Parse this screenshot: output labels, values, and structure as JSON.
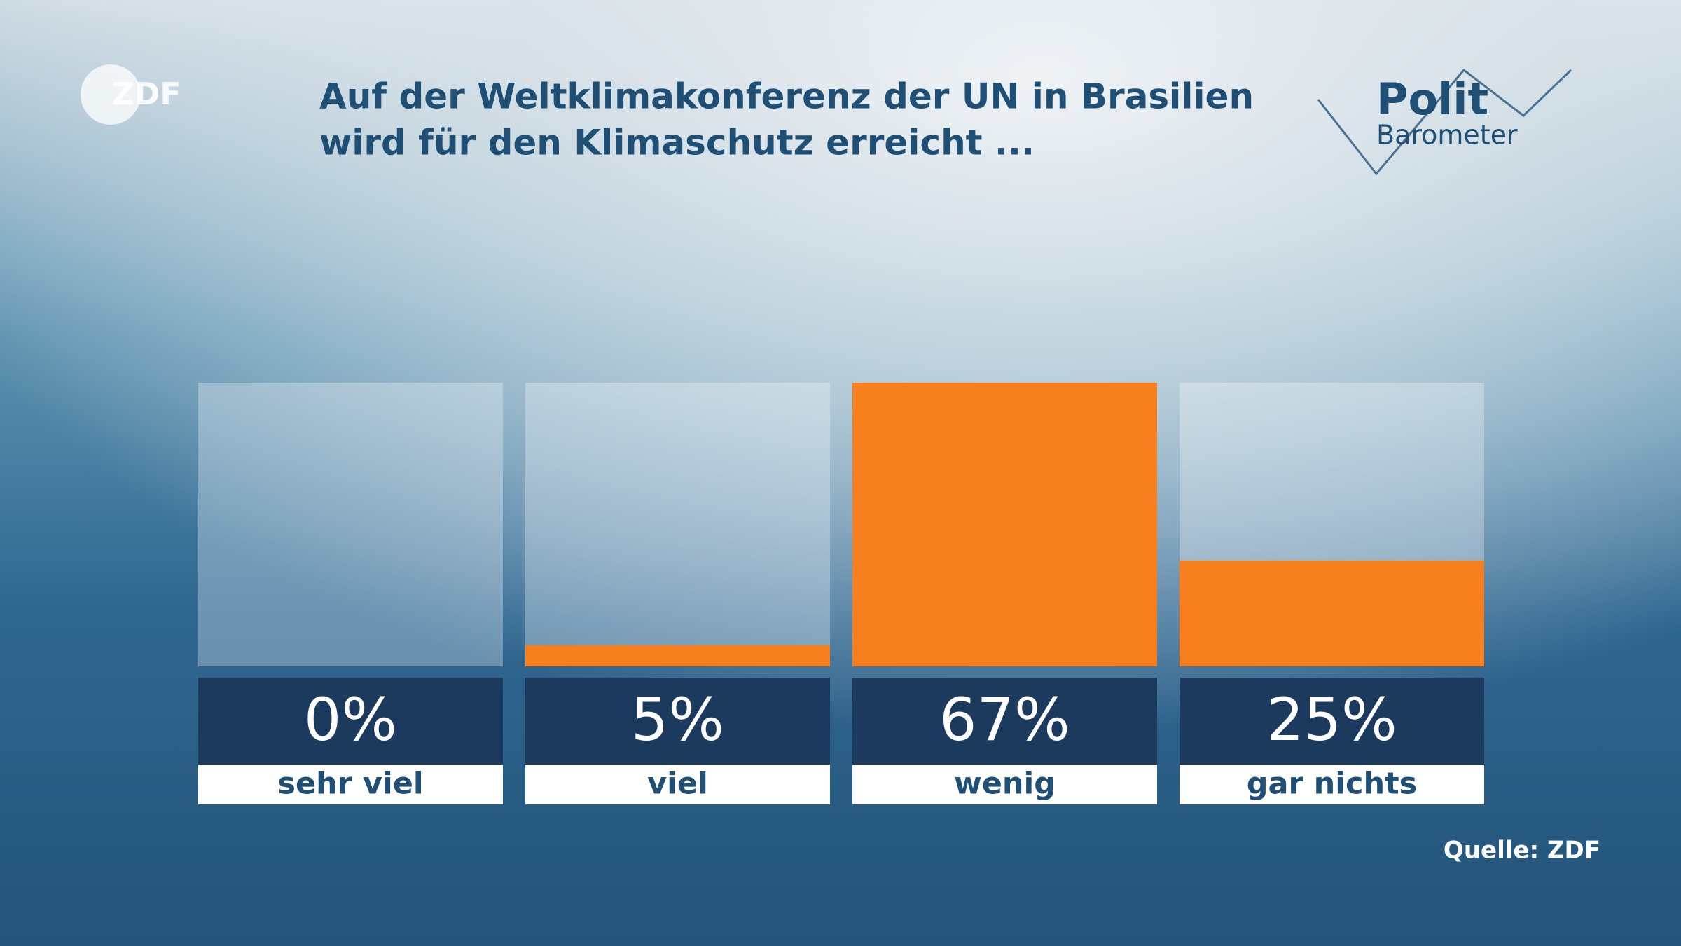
{
  "chart_data": {
    "type": "bar",
    "title": [
      "Auf der Weltklimakonferenz der UN in Brasilien",
      "wird für den Klimaschutz erreicht ..."
    ],
    "logo": "ZDF",
    "brand": [
      "Polit",
      "Barometer"
    ],
    "source": "Quelle: ZDF",
    "categories": [
      "sehr viel",
      "viel",
      "wenig",
      "gar nichts"
    ],
    "values": [
      0,
      5,
      67,
      25
    ],
    "value_labels": [
      "0%",
      "5%",
      "67%",
      "25%"
    ],
    "color": "#f77f1e",
    "ylim": [
      0,
      67
    ]
  }
}
